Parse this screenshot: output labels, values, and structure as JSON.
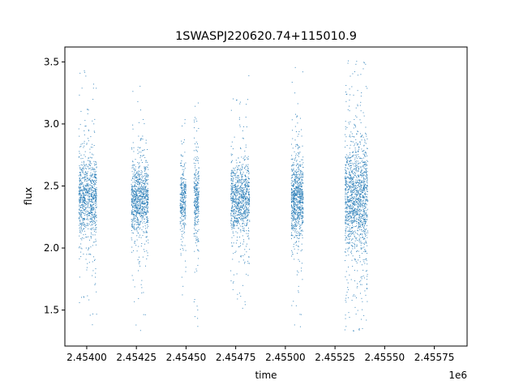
{
  "chart_data": {
    "type": "scatter",
    "title": "1SWASPJ220620.74+115010.9",
    "xlabel": "time",
    "ylabel": "flux",
    "x_offset_label": "1e6",
    "xlim": [
      2453890,
      2455915
    ],
    "ylim": [
      1.21,
      3.62
    ],
    "x_ticks": [
      2454000,
      2454250,
      2454500,
      2454750,
      2455000,
      2455250,
      2455500,
      2455750
    ],
    "x_tick_labels": [
      "2.45400",
      "2.45425",
      "2.45450",
      "2.45475",
      "2.45500",
      "2.45525",
      "2.45550",
      "2.45575"
    ],
    "y_ticks": [
      1.5,
      2.0,
      2.5,
      3.0,
      3.5
    ],
    "y_tick_labels": [
      "1.5",
      "2.0",
      "2.5",
      "3.0",
      "3.5"
    ],
    "grid": false,
    "marker_color": "#1f77b4",
    "series": [
      {
        "clusters": [
          {
            "x_start": 2453960,
            "x_end": 2454050,
            "y_center": 2.41,
            "y_core_spread": 0.16,
            "y_min": 1.36,
            "y_max": 3.45,
            "points": 900
          },
          {
            "x_start": 2454225,
            "x_end": 2454310,
            "y_center": 2.4,
            "y_core_spread": 0.14,
            "y_min": 1.33,
            "y_max": 3.46,
            "points": 900
          },
          {
            "x_start": 2454470,
            "x_end": 2454500,
            "y_center": 2.39,
            "y_core_spread": 0.13,
            "y_min": 1.6,
            "y_max": 3.05,
            "points": 300
          },
          {
            "x_start": 2454540,
            "x_end": 2454565,
            "y_center": 2.39,
            "y_core_spread": 0.14,
            "y_min": 1.35,
            "y_max": 3.26,
            "points": 300
          },
          {
            "x_start": 2454725,
            "x_end": 2454820,
            "y_center": 2.39,
            "y_core_spread": 0.14,
            "y_min": 1.32,
            "y_max": 3.4,
            "points": 900
          },
          {
            "x_start": 2455030,
            "x_end": 2455090,
            "y_center": 2.4,
            "y_core_spread": 0.15,
            "y_min": 1.33,
            "y_max": 3.49,
            "points": 800
          },
          {
            "x_start": 2455300,
            "x_end": 2455415,
            "y_center": 2.4,
            "y_core_spread": 0.22,
            "y_min": 1.33,
            "y_max": 3.52,
            "points": 1400
          }
        ]
      }
    ]
  }
}
